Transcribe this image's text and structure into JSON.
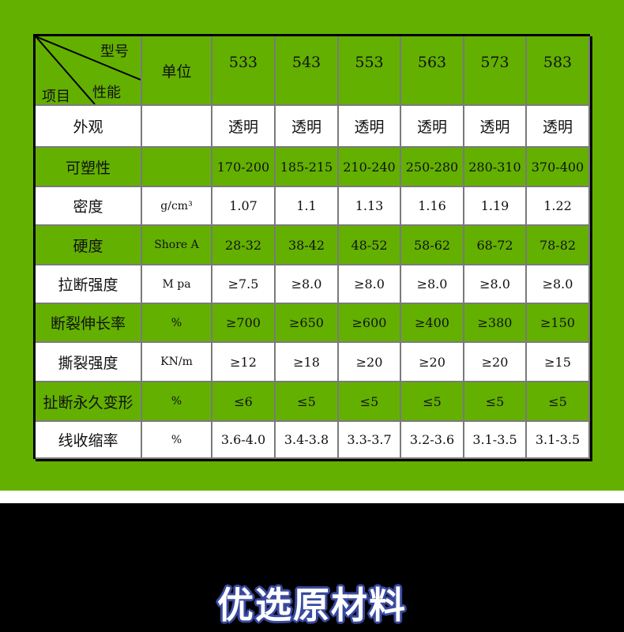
{
  "header": {
    "corner_top": "型号",
    "corner_mid": "性能",
    "corner_left": "项目",
    "unit": "单位",
    "models": [
      "533",
      "543",
      "553",
      "563",
      "573",
      "583"
    ]
  },
  "rows": [
    {
      "label": "外观",
      "unit": "",
      "values": [
        "透明",
        "透明",
        "透明",
        "透明",
        "透明",
        "透明"
      ]
    },
    {
      "label": "可塑性",
      "unit": "",
      "values": [
        "170-200",
        "185-215",
        "210-240",
        "250-280",
        "280-310",
        "370-400"
      ]
    },
    {
      "label": "密度",
      "unit": "g/cm³",
      "values": [
        "1.07",
        "1.1",
        "1.13",
        "1.16",
        "1.19",
        "1.22"
      ]
    },
    {
      "label": "硬度",
      "unit": "Shore A",
      "values": [
        "28-32",
        "38-42",
        "48-52",
        "58-62",
        "68-72",
        "78-82"
      ]
    },
    {
      "label": "拉断强度",
      "unit": "M pa",
      "values": [
        "≥7.5",
        "≥8.0",
        "≥8.0",
        "≥8.0",
        "≥8.0",
        "≥8.0"
      ]
    },
    {
      "label": "断裂伸长率",
      "unit": "%",
      "values": [
        "≥700",
        "≥650",
        "≥600",
        "≥400",
        "≥380",
        "≥150"
      ]
    },
    {
      "label": "撕裂强度",
      "unit": "KN/m",
      "values": [
        "≥12",
        "≥18",
        "≥20",
        "≥20",
        "≥20",
        "≥15"
      ]
    },
    {
      "label": "扯断永久变形",
      "unit": "%",
      "values": [
        "≤6",
        "≤5",
        "≤5",
        "≤5",
        "≤5",
        "≤5"
      ]
    },
    {
      "label": "线收缩率",
      "unit": "%",
      "values": [
        "3.6-4.0",
        "3.4-3.8",
        "3.3-3.7",
        "3.2-3.6",
        "3.1-3.5",
        "3.1-3.5"
      ]
    }
  ],
  "section_title": "优选原材料",
  "colors": {
    "green": "#63b000",
    "black": "#000000",
    "outline": "#3a4aa0"
  }
}
